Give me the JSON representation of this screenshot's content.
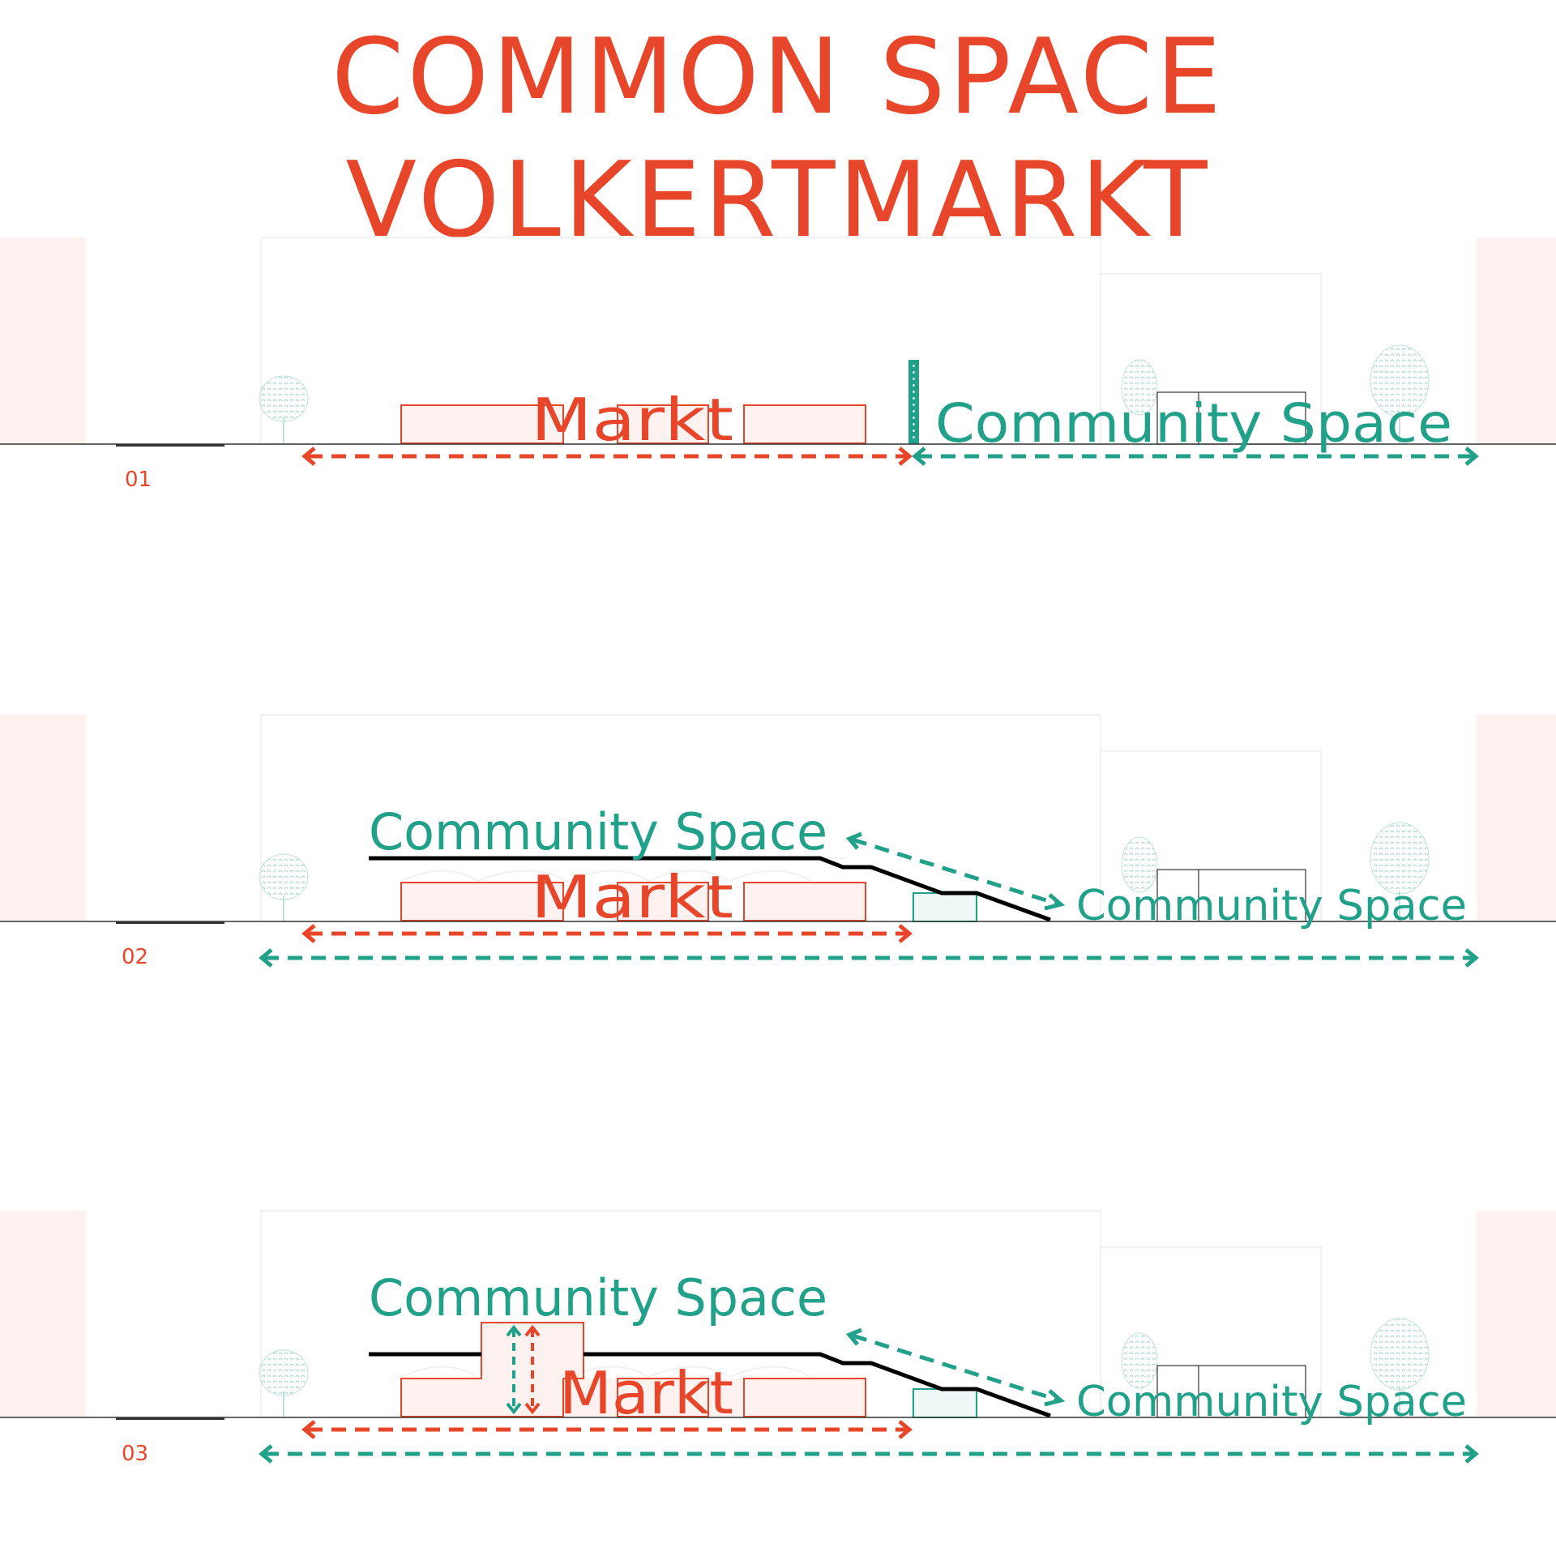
{
  "title": {
    "line1": "COMMON SPACE",
    "line2": "VOLKERTMARKT"
  },
  "colors": {
    "markt": "#e8462a",
    "community": "#21a08a",
    "pinkFill": "#fdf2ef",
    "ground": "#333333"
  },
  "sections": [
    {
      "number": "01",
      "markt_label": "Markt",
      "community_labels": [
        "Community Space"
      ]
    },
    {
      "number": "02",
      "markt_label": "Markt",
      "community_labels": [
        "Community Space",
        "Community Space"
      ]
    },
    {
      "number": "03",
      "markt_label": "Markt",
      "community_labels": [
        "Community Space",
        "Community Space"
      ]
    }
  ]
}
